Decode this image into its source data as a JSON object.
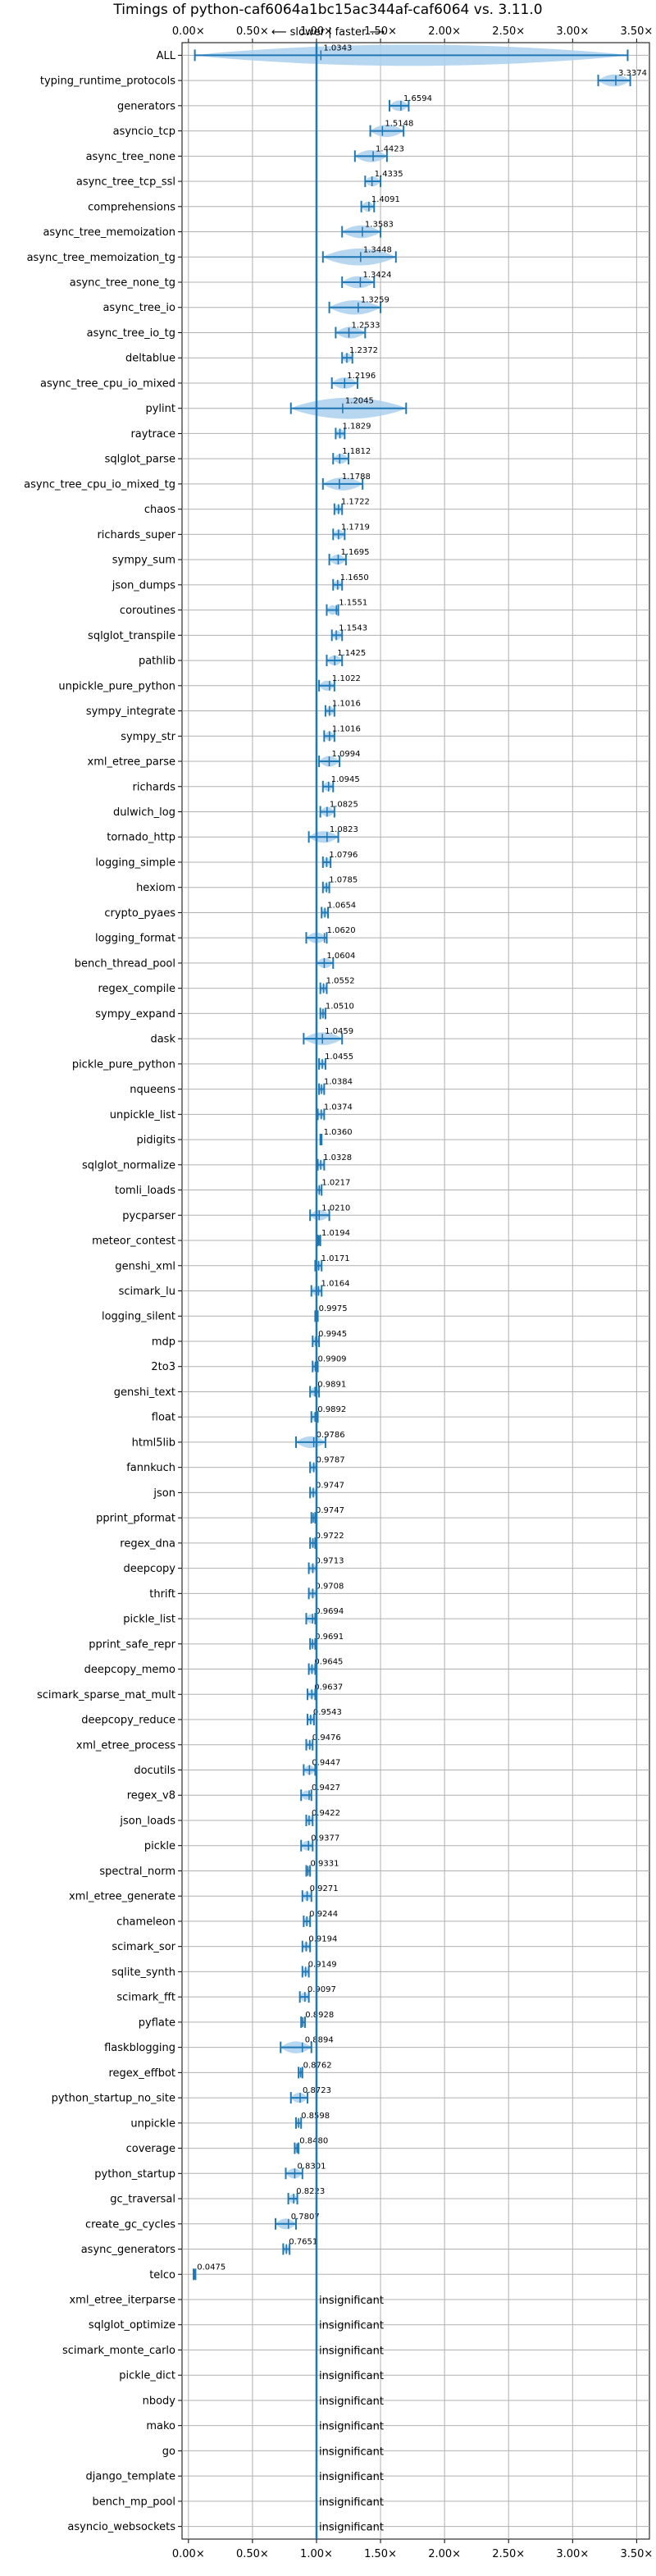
{
  "chart_data": {
    "type": "violin",
    "title": "Timings of python-caf6064a1bc15ac344af-caf6064 vs. 3.11.0",
    "direction_label": "⟵ slower | faster ⟶",
    "x_tick_labels": [
      "0.00×",
      "0.50×",
      "1.00×",
      "1.50×",
      "2.00×",
      "2.50×",
      "3.00×",
      "3.50×"
    ],
    "x_ticks": [
      0.0,
      0.5,
      1.0,
      1.5,
      2.0,
      2.5,
      3.0,
      3.5
    ],
    "xlim": [
      -0.05,
      3.6
    ],
    "reference_line": 1.0,
    "grid": true,
    "colors": {
      "violin": "#aad0ef",
      "whisker": "#1f77b4",
      "median": "#d62728",
      "grid": "#b0b0b0"
    },
    "insignificant_label": "insignificant",
    "benchmarks": [
      {
        "name": "ALL",
        "value": 1.0343,
        "low": 0.05,
        "high": 3.43
      },
      {
        "name": "typing_runtime_protocols",
        "value": 3.3374,
        "low": 3.2,
        "high": 3.45
      },
      {
        "name": "generators",
        "value": 1.6594,
        "low": 1.57,
        "high": 1.72
      },
      {
        "name": "asyncio_tcp",
        "value": 1.5148,
        "low": 1.42,
        "high": 1.68
      },
      {
        "name": "async_tree_none",
        "value": 1.4423,
        "low": 1.3,
        "high": 1.55
      },
      {
        "name": "async_tree_tcp_ssl",
        "value": 1.4335,
        "low": 1.38,
        "high": 1.5
      },
      {
        "name": "comprehensions",
        "value": 1.4091,
        "low": 1.35,
        "high": 1.45
      },
      {
        "name": "async_tree_memoization",
        "value": 1.3583,
        "low": 1.2,
        "high": 1.5
      },
      {
        "name": "async_tree_memoization_tg",
        "value": 1.3448,
        "low": 1.05,
        "high": 1.62
      },
      {
        "name": "async_tree_none_tg",
        "value": 1.3424,
        "low": 1.2,
        "high": 1.45
      },
      {
        "name": "async_tree_io",
        "value": 1.3259,
        "low": 1.1,
        "high": 1.5
      },
      {
        "name": "async_tree_io_tg",
        "value": 1.2533,
        "low": 1.15,
        "high": 1.38
      },
      {
        "name": "deltablue",
        "value": 1.2372,
        "low": 1.2,
        "high": 1.28
      },
      {
        "name": "async_tree_cpu_io_mixed",
        "value": 1.2196,
        "low": 1.12,
        "high": 1.32
      },
      {
        "name": "pylint",
        "value": 1.2045,
        "low": 0.8,
        "high": 1.7
      },
      {
        "name": "raytrace",
        "value": 1.1829,
        "low": 1.15,
        "high": 1.22
      },
      {
        "name": "sqlglot_parse",
        "value": 1.1812,
        "low": 1.13,
        "high": 1.25
      },
      {
        "name": "async_tree_cpu_io_mixed_tg",
        "value": 1.1788,
        "low": 1.05,
        "high": 1.36
      },
      {
        "name": "chaos",
        "value": 1.1722,
        "low": 1.14,
        "high": 1.2
      },
      {
        "name": "richards_super",
        "value": 1.1719,
        "low": 1.13,
        "high": 1.22
      },
      {
        "name": "sympy_sum",
        "value": 1.1695,
        "low": 1.1,
        "high": 1.23
      },
      {
        "name": "json_dumps",
        "value": 1.165,
        "low": 1.13,
        "high": 1.2
      },
      {
        "name": "coroutines",
        "value": 1.1551,
        "low": 1.08,
        "high": 1.17
      },
      {
        "name": "sqlglot_transpile",
        "value": 1.1543,
        "low": 1.12,
        "high": 1.2
      },
      {
        "name": "pathlib",
        "value": 1.1425,
        "low": 1.08,
        "high": 1.2
      },
      {
        "name": "unpickle_pure_python",
        "value": 1.1022,
        "low": 1.02,
        "high": 1.14
      },
      {
        "name": "sympy_integrate",
        "value": 1.1016,
        "low": 1.07,
        "high": 1.14
      },
      {
        "name": "sympy_str",
        "value": 1.1016,
        "low": 1.06,
        "high": 1.14
      },
      {
        "name": "xml_etree_parse",
        "value": 1.0994,
        "low": 1.02,
        "high": 1.18
      },
      {
        "name": "richards",
        "value": 1.0945,
        "low": 1.05,
        "high": 1.13
      },
      {
        "name": "dulwich_log",
        "value": 1.0825,
        "low": 1.03,
        "high": 1.14
      },
      {
        "name": "tornado_http",
        "value": 1.0823,
        "low": 0.94,
        "high": 1.17
      },
      {
        "name": "logging_simple",
        "value": 1.0796,
        "low": 1.05,
        "high": 1.11
      },
      {
        "name": "hexiom",
        "value": 1.0785,
        "low": 1.05,
        "high": 1.1
      },
      {
        "name": "crypto_pyaes",
        "value": 1.0654,
        "low": 1.04,
        "high": 1.09
      },
      {
        "name": "logging_format",
        "value": 1.062,
        "low": 0.92,
        "high": 1.08
      },
      {
        "name": "bench_thread_pool",
        "value": 1.0604,
        "low": 1.0,
        "high": 1.13
      },
      {
        "name": "regex_compile",
        "value": 1.0552,
        "low": 1.03,
        "high": 1.08
      },
      {
        "name": "sympy_expand",
        "value": 1.051,
        "low": 1.03,
        "high": 1.07
      },
      {
        "name": "dask",
        "value": 1.0459,
        "low": 0.9,
        "high": 1.2
      },
      {
        "name": "pickle_pure_python",
        "value": 1.0455,
        "low": 1.02,
        "high": 1.07
      },
      {
        "name": "nqueens",
        "value": 1.0384,
        "low": 1.02,
        "high": 1.06
      },
      {
        "name": "unpickle_list",
        "value": 1.0374,
        "low": 1.01,
        "high": 1.06
      },
      {
        "name": "pidigits",
        "value": 1.036,
        "low": 1.03,
        "high": 1.04
      },
      {
        "name": "sqlglot_normalize",
        "value": 1.0328,
        "low": 1.01,
        "high": 1.06
      },
      {
        "name": "tomli_loads",
        "value": 1.0217,
        "low": 1.0,
        "high": 1.04
      },
      {
        "name": "pycparser",
        "value": 1.021,
        "low": 0.95,
        "high": 1.1
      },
      {
        "name": "meteor_contest",
        "value": 1.0194,
        "low": 1.01,
        "high": 1.03
      },
      {
        "name": "genshi_xml",
        "value": 1.0171,
        "low": 0.99,
        "high": 1.04
      },
      {
        "name": "scimark_lu",
        "value": 1.0164,
        "low": 0.96,
        "high": 1.04
      },
      {
        "name": "logging_silent",
        "value": 0.9975,
        "low": 0.99,
        "high": 1.01
      },
      {
        "name": "mdp",
        "value": 0.9945,
        "low": 0.97,
        "high": 1.02
      },
      {
        "name": "2to3",
        "value": 0.9909,
        "low": 0.97,
        "high": 1.01
      },
      {
        "name": "genshi_text",
        "value": 0.9891,
        "low": 0.95,
        "high": 1.02
      },
      {
        "name": "float",
        "value": 0.9892,
        "low": 0.96,
        "high": 1.01
      },
      {
        "name": "html5lib",
        "value": 0.9786,
        "low": 0.84,
        "high": 1.07
      },
      {
        "name": "fannkuch",
        "value": 0.9787,
        "low": 0.95,
        "high": 1.0
      },
      {
        "name": "json",
        "value": 0.9747,
        "low": 0.95,
        "high": 1.0
      },
      {
        "name": "pprint_pformat",
        "value": 0.9747,
        "low": 0.96,
        "high": 0.99
      },
      {
        "name": "regex_dna",
        "value": 0.9722,
        "low": 0.95,
        "high": 0.99
      },
      {
        "name": "deepcopy",
        "value": 0.9713,
        "low": 0.94,
        "high": 1.0
      },
      {
        "name": "thrift",
        "value": 0.9708,
        "low": 0.94,
        "high": 1.0
      },
      {
        "name": "pickle_list",
        "value": 0.9694,
        "low": 0.92,
        "high": 0.99
      },
      {
        "name": "pprint_safe_repr",
        "value": 0.9691,
        "low": 0.95,
        "high": 0.99
      },
      {
        "name": "deepcopy_memo",
        "value": 0.9645,
        "low": 0.94,
        "high": 0.99
      },
      {
        "name": "scimark_sparse_mat_mult",
        "value": 0.9637,
        "low": 0.93,
        "high": 0.99
      },
      {
        "name": "deepcopy_reduce",
        "value": 0.9543,
        "low": 0.93,
        "high": 0.98
      },
      {
        "name": "xml_etree_process",
        "value": 0.9476,
        "low": 0.92,
        "high": 0.97
      },
      {
        "name": "docutils",
        "value": 0.9447,
        "low": 0.9,
        "high": 0.99
      },
      {
        "name": "regex_v8",
        "value": 0.9427,
        "low": 0.88,
        "high": 0.96
      },
      {
        "name": "json_loads",
        "value": 0.9422,
        "low": 0.92,
        "high": 0.97
      },
      {
        "name": "pickle",
        "value": 0.9377,
        "low": 0.88,
        "high": 0.97
      },
      {
        "name": "spectral_norm",
        "value": 0.9331,
        "low": 0.92,
        "high": 0.95
      },
      {
        "name": "xml_etree_generate",
        "value": 0.9271,
        "low": 0.89,
        "high": 0.96
      },
      {
        "name": "chameleon",
        "value": 0.9244,
        "low": 0.9,
        "high": 0.95
      },
      {
        "name": "scimark_sor",
        "value": 0.9194,
        "low": 0.89,
        "high": 0.95
      },
      {
        "name": "sqlite_synth",
        "value": 0.9149,
        "low": 0.89,
        "high": 0.94
      },
      {
        "name": "scimark_fft",
        "value": 0.9097,
        "low": 0.87,
        "high": 0.94
      },
      {
        "name": "pyflate",
        "value": 0.8928,
        "low": 0.88,
        "high": 0.91
      },
      {
        "name": "flaskblogging",
        "value": 0.8894,
        "low": 0.72,
        "high": 0.96
      },
      {
        "name": "regex_effbot",
        "value": 0.8762,
        "low": 0.86,
        "high": 0.89
      },
      {
        "name": "python_startup_no_site",
        "value": 0.8723,
        "low": 0.8,
        "high": 0.93
      },
      {
        "name": "unpickle",
        "value": 0.8598,
        "low": 0.84,
        "high": 0.88
      },
      {
        "name": "coverage",
        "value": 0.848,
        "low": 0.83,
        "high": 0.86
      },
      {
        "name": "python_startup",
        "value": 0.8301,
        "low": 0.76,
        "high": 0.89
      },
      {
        "name": "gc_traversal",
        "value": 0.8223,
        "low": 0.78,
        "high": 0.85
      },
      {
        "name": "create_gc_cycles",
        "value": 0.7807,
        "low": 0.68,
        "high": 0.84
      },
      {
        "name": "async_generators",
        "value": 0.7651,
        "low": 0.74,
        "high": 0.79
      },
      {
        "name": "telco",
        "value": 0.0475,
        "low": 0.04,
        "high": 0.055
      },
      {
        "name": "xml_etree_iterparse",
        "value": null
      },
      {
        "name": "sqlglot_optimize",
        "value": null
      },
      {
        "name": "scimark_monte_carlo",
        "value": null
      },
      {
        "name": "pickle_dict",
        "value": null
      },
      {
        "name": "nbody",
        "value": null
      },
      {
        "name": "mako",
        "value": null
      },
      {
        "name": "go",
        "value": null
      },
      {
        "name": "django_template",
        "value": null
      },
      {
        "name": "bench_mp_pool",
        "value": null
      },
      {
        "name": "asyncio_websockets",
        "value": null
      }
    ]
  }
}
